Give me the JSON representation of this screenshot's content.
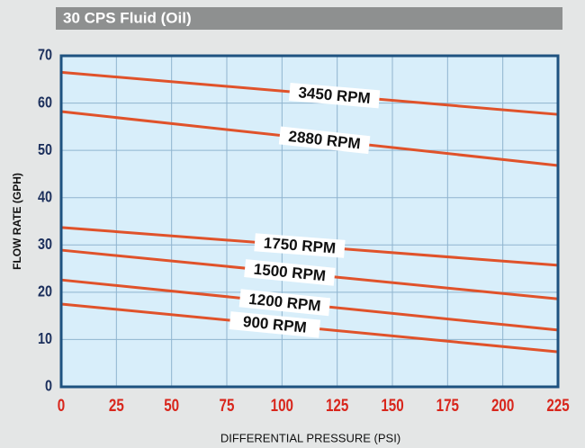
{
  "chart_data": {
    "type": "line",
    "title": "30 CPS Fluid (Oil)",
    "x_label": "DIFFERENTIAL PRESSURE  (PSI)",
    "y_label": "FLOW RATE (GPH)",
    "x": [
      0,
      225
    ],
    "series": [
      {
        "name": "3450 RPM",
        "color": "#e0522a",
        "values": [
          66.5,
          57.6
        ]
      },
      {
        "name": "2880 RPM",
        "color": "#e0522a",
        "values": [
          58.2,
          46.8
        ]
      },
      {
        "name": "1750 RPM",
        "color": "#e0522a",
        "values": [
          33.7,
          25.7
        ]
      },
      {
        "name": "1500 RPM",
        "color": "#e0522a",
        "values": [
          28.9,
          18.6
        ]
      },
      {
        "name": "1200 RPM",
        "color": "#e0522a",
        "values": [
          22.6,
          12.0
        ]
      },
      {
        "name": "900 RPM",
        "color": "#e0522a",
        "values": [
          17.5,
          7.4
        ]
      }
    ],
    "xlim": [
      0,
      225
    ],
    "xticks": [
      0,
      25,
      50,
      75,
      100,
      125,
      150,
      175,
      200,
      225
    ],
    "ylim": [
      0,
      70
    ],
    "yticks": [
      0,
      10,
      20,
      30,
      40,
      50,
      60,
      70
    ],
    "grid": true,
    "plot_color": "#d8eefa",
    "grid_color": "#8fb4cf",
    "frame_color": "#1e5280",
    "xtick_color": "#d8261c",
    "ytick_color": "#1b2f5c"
  }
}
